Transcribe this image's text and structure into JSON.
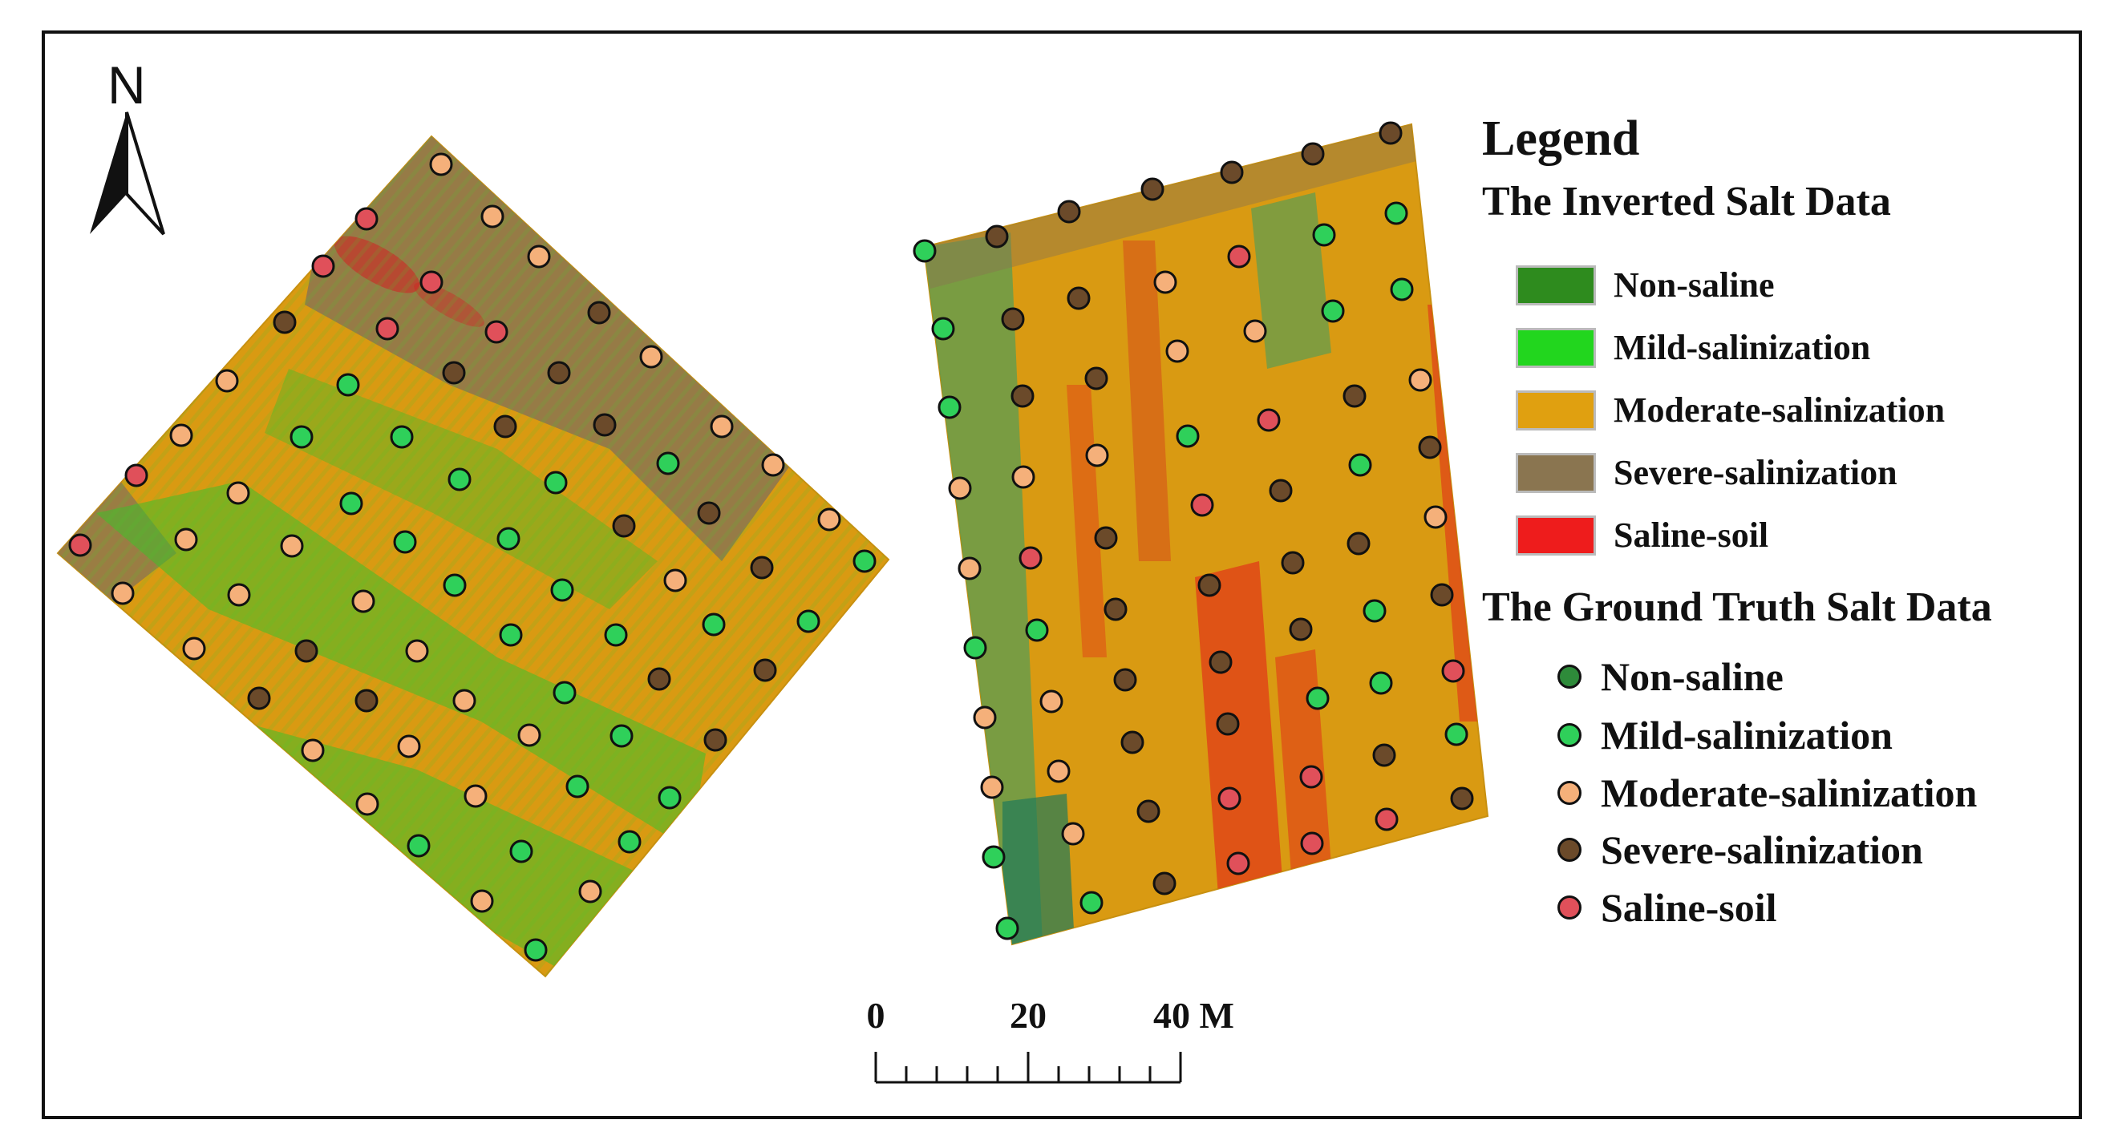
{
  "north": {
    "label": "N",
    "icon": "north-arrow-icon"
  },
  "legend": {
    "title": "Legend",
    "inverted_title": "The Inverted Salt Data",
    "inverted_classes": [
      {
        "label": "Non-saline",
        "color": "#2e8b1e"
      },
      {
        "label": "Mild-salinization",
        "color": "#22d61e"
      },
      {
        "label": "Moderate-salinization",
        "color": "#e0a010"
      },
      {
        "label": "Severe-salinization",
        "color": "#8a7550"
      },
      {
        "label": "Saline-soil",
        "color": "#ee1c1c"
      }
    ],
    "truth_title": "The Ground Truth Salt Data",
    "truth_classes": [
      {
        "label": "Non-saline",
        "color": "#2e8b3a"
      },
      {
        "label": "Mild-salinization",
        "color": "#2fd05a"
      },
      {
        "label": "Moderate-salinization",
        "color": "#f5b07a"
      },
      {
        "label": "Severe-salinization",
        "color": "#6b4a2a"
      },
      {
        "label": "Saline-soil",
        "color": "#e0505a"
      }
    ]
  },
  "scale_bar": {
    "labels": [
      "0",
      "20",
      "40 M"
    ]
  }
}
